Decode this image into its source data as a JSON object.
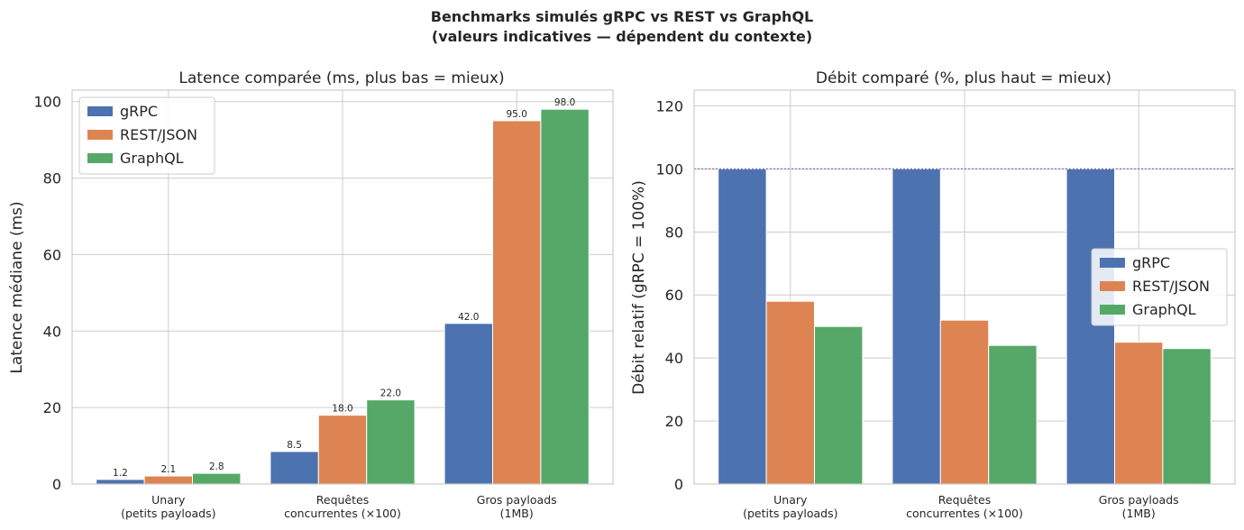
{
  "suptitle": {
    "line1": "Benchmarks simulés gRPC vs REST vs GraphQL",
    "line2": "(valeurs indicatives — dépendent du contexte)"
  },
  "colors": {
    "grpc": "#4c72b0",
    "rest": "#dd8452",
    "graphql": "#55a868",
    "grid": "#cccccc",
    "refline": "#8172b3"
  },
  "chart_data": [
    {
      "type": "bar",
      "title": "Latence comparée (ms, plus bas = mieux)",
      "xlabel": "",
      "ylabel": "Latence médiane (ms)",
      "ylim": [
        0,
        103
      ],
      "yticks": [
        0,
        20,
        40,
        60,
        80,
        100
      ],
      "categories": [
        [
          "Unary",
          "(petits payloads)"
        ],
        [
          "Requêtes",
          "concurrentes (×100)"
        ],
        [
          "Gros payloads",
          "(1MB)"
        ]
      ],
      "series": [
        {
          "name": "gRPC",
          "color": "#4c72b0",
          "values": [
            1.2,
            8.5,
            42.0
          ],
          "labels": [
            "1.2",
            "8.5",
            "42.0"
          ]
        },
        {
          "name": "REST/JSON",
          "color": "#dd8452",
          "values": [
            2.1,
            18.0,
            95.0
          ],
          "labels": [
            "2.1",
            "18.0",
            "95.0"
          ]
        },
        {
          "name": "GraphQL",
          "color": "#55a868",
          "values": [
            2.8,
            22.0,
            98.0
          ],
          "labels": [
            "2.8",
            "22.0",
            "98.0"
          ]
        }
      ],
      "data_labels": true,
      "grid": true,
      "legend": "top-left"
    },
    {
      "type": "bar",
      "title": "Débit comparé (%, plus haut = mieux)",
      "xlabel": "",
      "ylabel": "Débit relatif (gRPC = 100%)",
      "ylim": [
        0,
        125
      ],
      "yticks": [
        0,
        20,
        40,
        60,
        80,
        100,
        120
      ],
      "reference_line": 100,
      "categories": [
        [
          "Unary",
          "(petits payloads)"
        ],
        [
          "Requêtes",
          "concurrentes (×100)"
        ],
        [
          "Gros payloads",
          "(1MB)"
        ]
      ],
      "series": [
        {
          "name": "gRPC",
          "color": "#4c72b0",
          "values": [
            100,
            100,
            100
          ]
        },
        {
          "name": "REST/JSON",
          "color": "#dd8452",
          "values": [
            58,
            52,
            45
          ]
        },
        {
          "name": "GraphQL",
          "color": "#55a868",
          "values": [
            50,
            44,
            43
          ]
        }
      ],
      "data_labels": false,
      "grid": true,
      "legend": "center-right"
    }
  ]
}
